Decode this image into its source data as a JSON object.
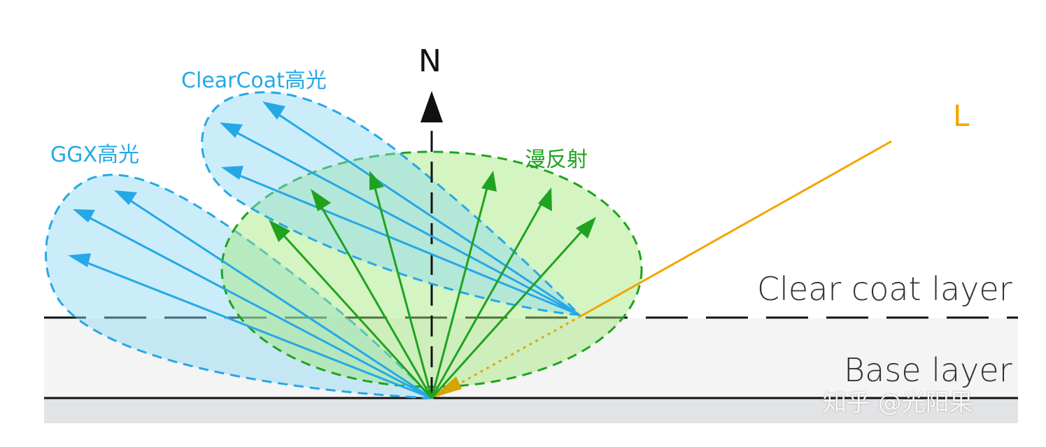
{
  "labels": {
    "normal": "N",
    "light": "L",
    "clearcoat_specular": "ClearCoat高光",
    "ggx_specular": "GGX高光",
    "diffuse": "漫反射",
    "clear_coat_layer": "Clear coat layer",
    "base_layer": "Base layer",
    "watermark": "知乎 @光阳果"
  },
  "colors": {
    "specular": "#26a8e6",
    "diffuse": "#1fa31f",
    "light": "#f5a300",
    "axis": "#111111"
  }
}
